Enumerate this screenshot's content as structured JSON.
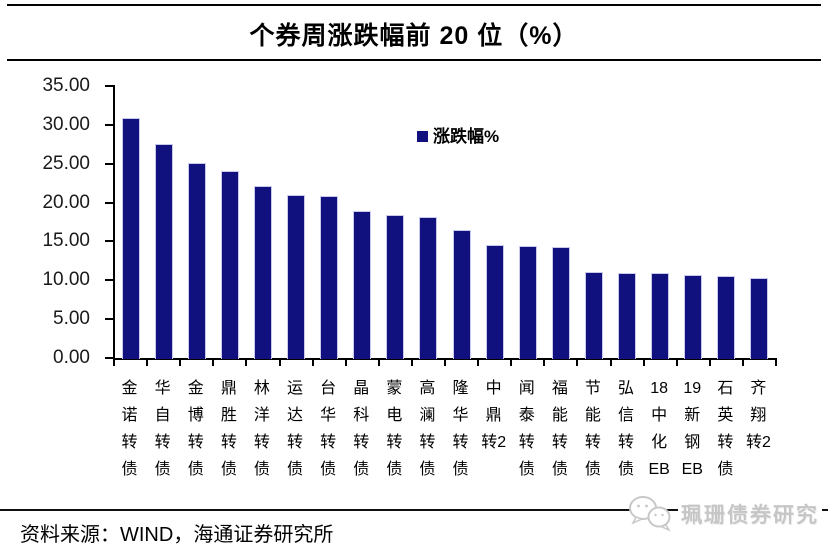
{
  "header": {
    "title": "个券周涨跌幅前 20 位（%）"
  },
  "legend": {
    "label": "涨跌幅%"
  },
  "footer": {
    "source": "资料来源：WIND，海通证券研究所",
    "watermark": "珮珊债券研究",
    "watermark_logo": "chat-bubbles-icon"
  },
  "colors": {
    "bar": "#10107E",
    "bar_border": "#C9C9EA",
    "axis": "#000000",
    "watermark": "#C6C6C6"
  },
  "chart_data": {
    "type": "bar",
    "title": "个券周涨跌幅前 20 位（%）",
    "legend": [
      "涨跌幅%"
    ],
    "legend_position": "inside-top-center",
    "grid": false,
    "ylim": [
      0,
      35
    ],
    "y_tick_step": 5,
    "y_ticks": [
      "0.00",
      "5.00",
      "10.00",
      "15.00",
      "20.00",
      "25.00",
      "30.00",
      "35.00"
    ],
    "categories": [
      "金诺转债",
      "华自转债",
      "金博转债",
      "鼎胜转债",
      "林洋转债",
      "运达转债",
      "台华转债",
      "晶科转债",
      "蒙电转债",
      "高澜转债",
      "隆华转债",
      "中鼎转2",
      "闻泰转债",
      "福能转债",
      "节能转债",
      "弘信转债",
      "18中化EB",
      "19新钢EB",
      "石英转债",
      "齐翔转2"
    ],
    "category_lines": [
      [
        "金",
        "诺",
        "转",
        "债"
      ],
      [
        "华",
        "自",
        "转",
        "债"
      ],
      [
        "金",
        "博",
        "转",
        "债"
      ],
      [
        "鼎",
        "胜",
        "转",
        "债"
      ],
      [
        "林",
        "洋",
        "转",
        "债"
      ],
      [
        "运",
        "达",
        "转",
        "债"
      ],
      [
        "台",
        "华",
        "转",
        "债"
      ],
      [
        "晶",
        "科",
        "转",
        "债"
      ],
      [
        "蒙",
        "电",
        "转",
        "债"
      ],
      [
        "高",
        "澜",
        "转",
        "债"
      ],
      [
        "隆",
        "华",
        "转",
        "债"
      ],
      [
        "中",
        "鼎",
        "转2"
      ],
      [
        "闻",
        "泰",
        "转",
        "债"
      ],
      [
        "福",
        "能",
        "转",
        "债"
      ],
      [
        "节",
        "能",
        "转",
        "债"
      ],
      [
        "弘",
        "信",
        "转",
        "债"
      ],
      [
        "18",
        "中",
        "化",
        "EB"
      ],
      [
        "19",
        "新",
        "钢",
        "EB"
      ],
      [
        "石",
        "英",
        "转",
        "债"
      ],
      [
        "齐",
        "翔",
        "转2"
      ]
    ],
    "series": [
      {
        "name": "涨跌幅%",
        "values": [
          30.9,
          27.6,
          25.1,
          24.0,
          22.1,
          21.0,
          20.8,
          18.9,
          18.4,
          18.1,
          16.5,
          14.5,
          14.4,
          14.3,
          11.1,
          11.0,
          10.9,
          10.7,
          10.5,
          10.3
        ]
      }
    ]
  }
}
